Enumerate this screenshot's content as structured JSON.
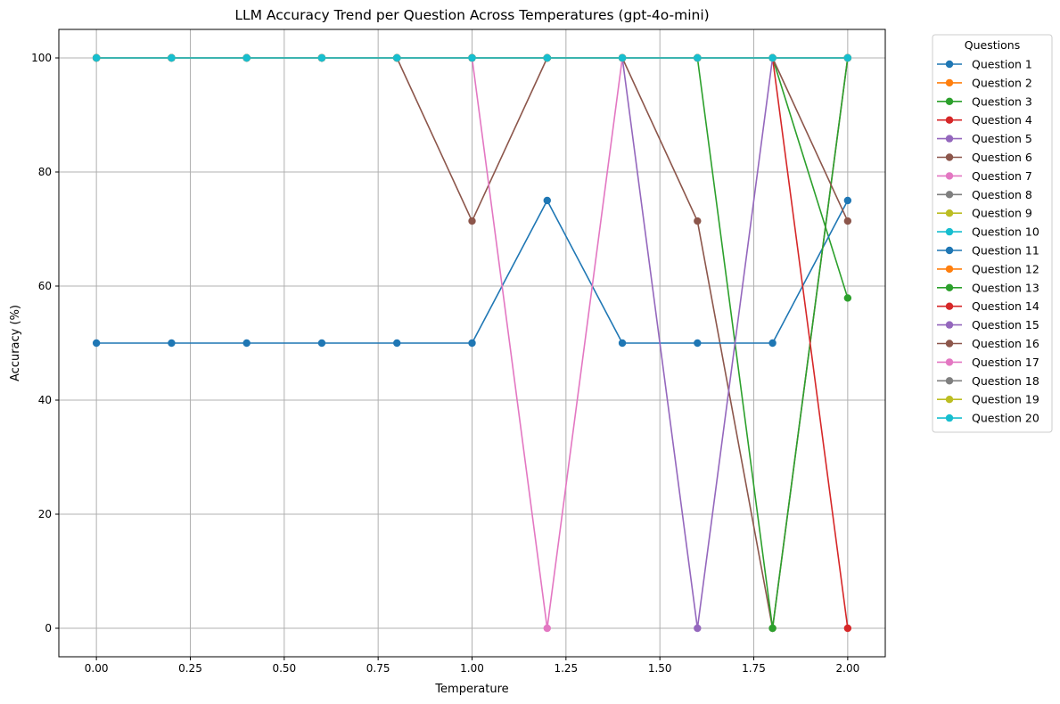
{
  "chart_data": {
    "type": "line",
    "title": "LLM Accuracy Trend per Question Across Temperatures (gpt-4o-mini)",
    "xlabel": "Temperature",
    "ylabel": "Accuracy (%)",
    "xlim": [
      -0.1,
      2.1
    ],
    "ylim": [
      -5,
      105
    ],
    "xticks": [
      0.0,
      0.25,
      0.5,
      0.75,
      1.0,
      1.25,
      1.5,
      1.75,
      2.0
    ],
    "xtick_labels": [
      "0.00",
      "0.25",
      "0.50",
      "0.75",
      "1.00",
      "1.25",
      "1.50",
      "1.75",
      "2.00"
    ],
    "yticks": [
      0,
      20,
      40,
      60,
      80,
      100
    ],
    "ytick_labels": [
      "0",
      "20",
      "40",
      "60",
      "80",
      "100"
    ],
    "grid": true,
    "legend_title": "Questions",
    "legend_position": "outside-upper-right",
    "x": [
      0.0,
      0.2,
      0.4,
      0.6,
      0.8,
      1.0,
      1.2,
      1.4,
      1.6,
      1.8,
      2.0
    ],
    "series": [
      {
        "name": "Question 1",
        "color": "#1f77b4",
        "values": [
          100,
          100,
          100,
          100,
          100,
          100,
          100,
          100,
          100,
          100,
          100
        ]
      },
      {
        "name": "Question 2",
        "color": "#ff7f0e",
        "values": [
          100,
          100,
          100,
          100,
          100,
          100,
          100,
          100,
          100,
          100,
          100
        ]
      },
      {
        "name": "Question 3",
        "color": "#2ca02c",
        "values": [
          100,
          100,
          100,
          100,
          100,
          100,
          100,
          100,
          100,
          100,
          57.9
        ]
      },
      {
        "name": "Question 4",
        "color": "#d62728",
        "values": [
          100,
          100,
          100,
          100,
          100,
          100,
          100,
          100,
          100,
          100,
          100
        ]
      },
      {
        "name": "Question 5",
        "color": "#9467bd",
        "values": [
          100,
          100,
          100,
          100,
          100,
          100,
          100,
          100,
          100,
          100,
          100
        ]
      },
      {
        "name": "Question 6",
        "color": "#8c564b",
        "values": [
          100,
          100,
          100,
          100,
          100,
          100,
          100,
          100,
          71.4,
          0,
          100
        ]
      },
      {
        "name": "Question 7",
        "color": "#e377c2",
        "values": [
          100,
          100,
          100,
          100,
          100,
          100,
          100,
          100,
          100,
          100,
          100
        ]
      },
      {
        "name": "Question 8",
        "color": "#7f7f7f",
        "values": [
          100,
          100,
          100,
          100,
          100,
          100,
          100,
          100,
          100,
          100,
          100
        ]
      },
      {
        "name": "Question 9",
        "color": "#bcbd22",
        "values": [
          100,
          100,
          100,
          100,
          100,
          100,
          100,
          100,
          100,
          100,
          100
        ]
      },
      {
        "name": "Question 10",
        "color": "#17becf",
        "values": [
          100,
          100,
          100,
          100,
          100,
          100,
          100,
          100,
          100,
          100,
          100
        ]
      },
      {
        "name": "Question 11",
        "color": "#1f77b4",
        "values": [
          50,
          50,
          50,
          50,
          50,
          50,
          75,
          50,
          50,
          50,
          75
        ]
      },
      {
        "name": "Question 12",
        "color": "#ff7f0e",
        "values": [
          100,
          100,
          100,
          100,
          100,
          100,
          100,
          100,
          100,
          100,
          100
        ]
      },
      {
        "name": "Question 13",
        "color": "#2ca02c",
        "values": [
          100,
          100,
          100,
          100,
          100,
          100,
          100,
          100,
          100,
          0,
          100
        ]
      },
      {
        "name": "Question 14",
        "color": "#d62728",
        "values": [
          100,
          100,
          100,
          100,
          100,
          100,
          100,
          100,
          100,
          100,
          0
        ]
      },
      {
        "name": "Question 15",
        "color": "#9467bd",
        "values": [
          100,
          100,
          100,
          100,
          100,
          100,
          100,
          100,
          0,
          100,
          100
        ]
      },
      {
        "name": "Question 16",
        "color": "#8c564b",
        "values": [
          100,
          100,
          100,
          100,
          100,
          71.4,
          100,
          100,
          100,
          100,
          71.4
        ]
      },
      {
        "name": "Question 17",
        "color": "#e377c2",
        "values": [
          100,
          100,
          100,
          100,
          100,
          100,
          0,
          100,
          100,
          100,
          100
        ]
      },
      {
        "name": "Question 18",
        "color": "#7f7f7f",
        "values": [
          100,
          100,
          100,
          100,
          100,
          100,
          100,
          100,
          100,
          100,
          100
        ]
      },
      {
        "name": "Question 19",
        "color": "#bcbd22",
        "values": [
          100,
          100,
          100,
          100,
          100,
          100,
          100,
          100,
          100,
          100,
          100
        ]
      },
      {
        "name": "Question 20",
        "color": "#17becf",
        "values": [
          100,
          100,
          100,
          100,
          100,
          100,
          100,
          100,
          100,
          100,
          100
        ]
      }
    ]
  }
}
